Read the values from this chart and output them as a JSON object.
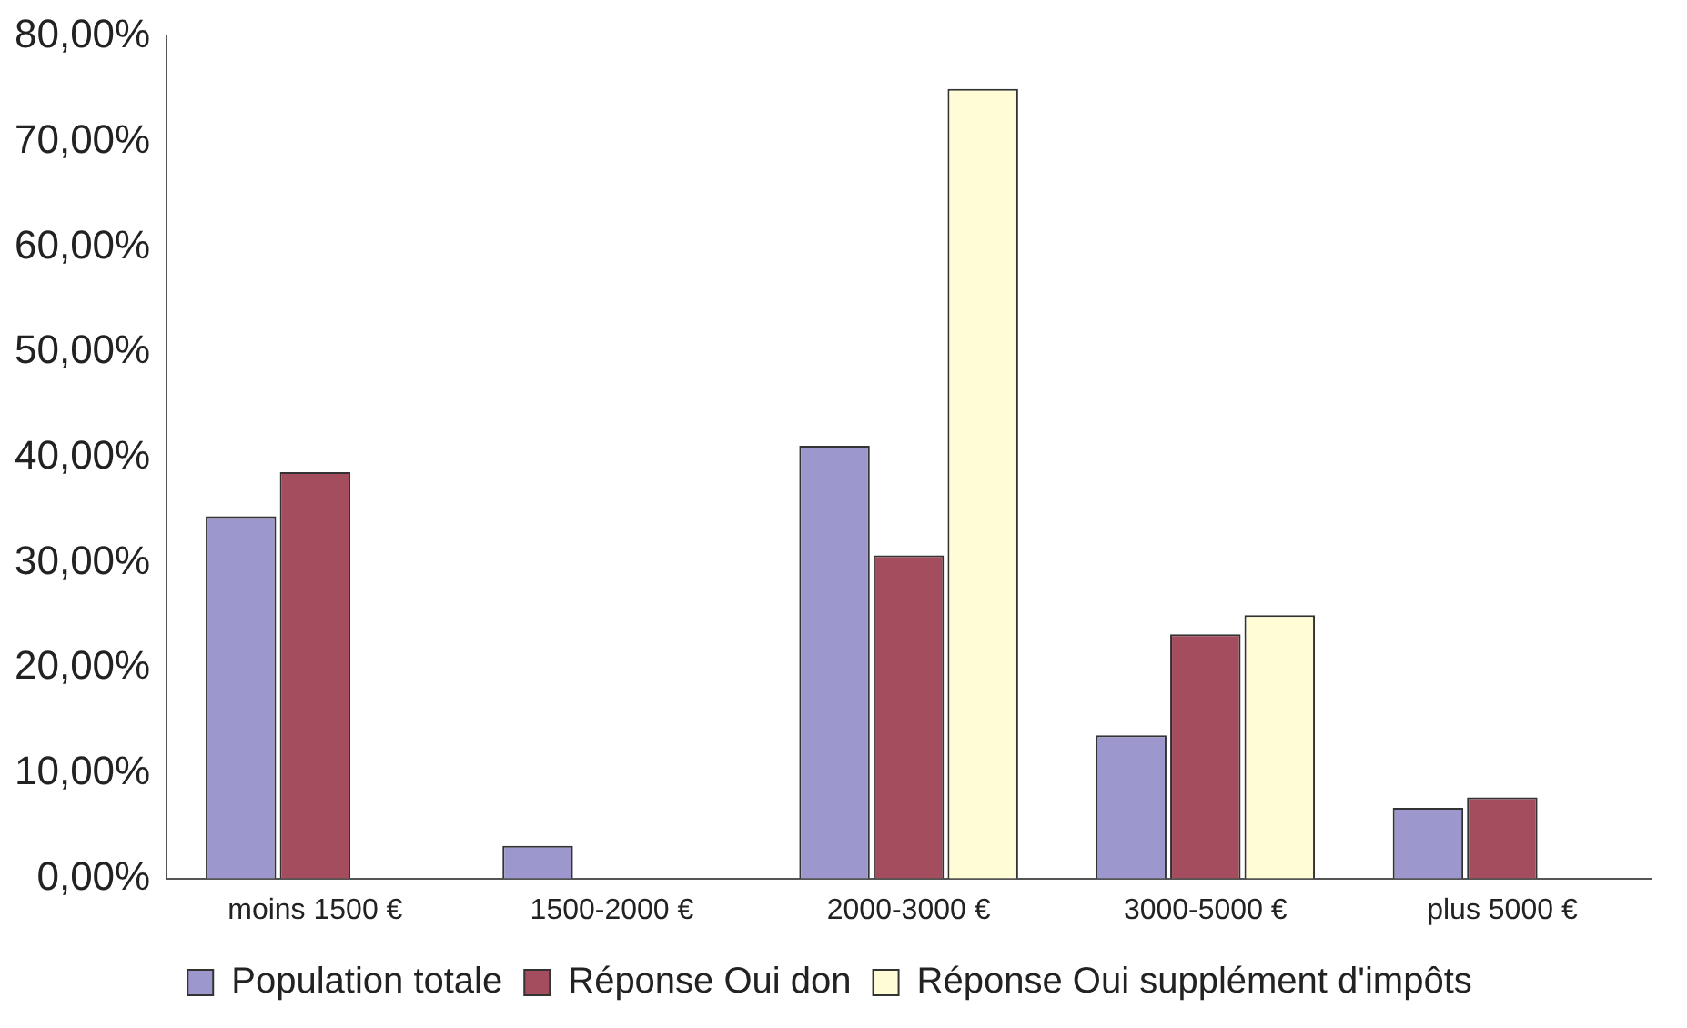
{
  "chart_data": {
    "type": "bar",
    "categories": [
      "moins 1500 €",
      "1500-2000 €",
      "2000-3000 €",
      "3000-5000 €",
      "plus 5000 €"
    ],
    "series": [
      {
        "name": "Population totale",
        "color": "#9c97cc",
        "values": [
          34.4,
          3.1,
          41.1,
          13.6,
          6.7
        ]
      },
      {
        "name": "Réponse Oui don",
        "color": "#a34d5e",
        "values": [
          38.6,
          0,
          30.7,
          23.2,
          7.7
        ]
      },
      {
        "name": "Réponse Oui supplément d'impôts",
        "color": "#fffcd6",
        "values": [
          0,
          0,
          75,
          25,
          0
        ]
      }
    ],
    "ylim": [
      0,
      80
    ],
    "yticks": [
      {
        "value": 0,
        "label": "0,00%"
      },
      {
        "value": 10,
        "label": "10,00%"
      },
      {
        "value": 20,
        "label": "20,00%"
      },
      {
        "value": 30,
        "label": "30,00%"
      },
      {
        "value": 40,
        "label": "40,00%"
      },
      {
        "value": 50,
        "label": "50,00%"
      },
      {
        "value": 60,
        "label": "60,00%"
      },
      {
        "value": 70,
        "label": "70,00%"
      },
      {
        "value": 80,
        "label": "80,00%"
      }
    ],
    "grid": false,
    "legend": "bottom"
  }
}
